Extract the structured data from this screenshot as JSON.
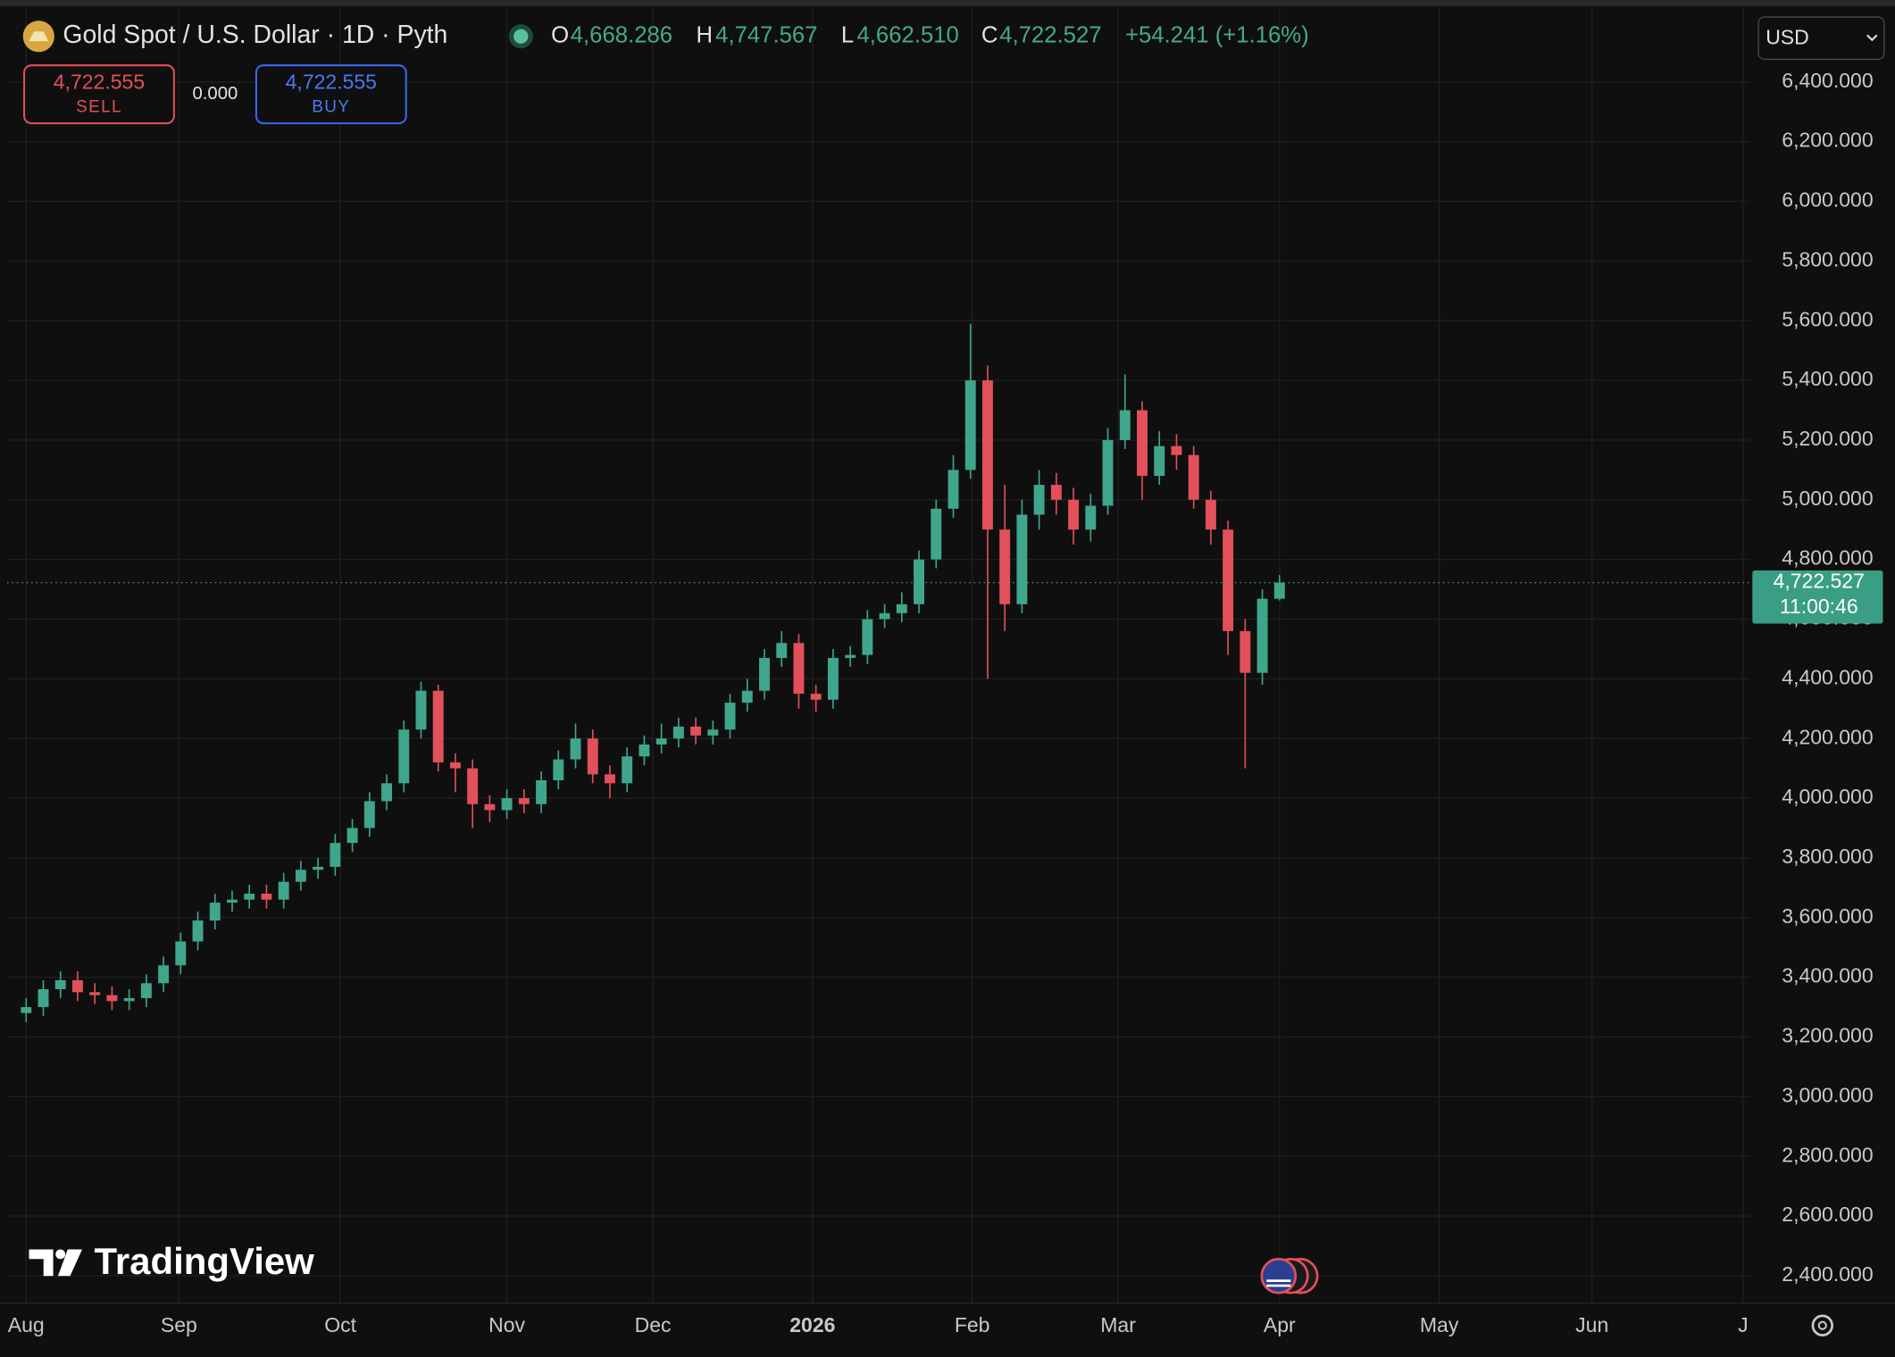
{
  "header": {
    "title": "Gold Spot / U.S. Dollar · 1D · Pyth",
    "open_label": "O",
    "open": "4,668.286",
    "high_label": "H",
    "high": "4,747.567",
    "low_label": "L",
    "low": "4,662.510",
    "close_label": "C",
    "close": "4,722.527",
    "change": "+54.241 (+1.16%)"
  },
  "trade": {
    "sell_price": "4,722.555",
    "sell_label": "SELL",
    "spread": "0.000",
    "buy_price": "4,722.555",
    "buy_label": "BUY"
  },
  "currency": "USD",
  "price_tag": {
    "price": "4,722.527",
    "countdown": "11:00:46"
  },
  "logo": "TradingView",
  "chart_data": {
    "type": "candlestick",
    "title": "Gold Spot / U.S. Dollar · 1D · Pyth",
    "categories": [
      null,
      null,
      null,
      null,
      null,
      null,
      null,
      null,
      null,
      null,
      null,
      null,
      null,
      null,
      null,
      null,
      null,
      null,
      null,
      null,
      null,
      null,
      null,
      null,
      null,
      null,
      null,
      null,
      null,
      null,
      null,
      null,
      null,
      null,
      null,
      null,
      null,
      null,
      null,
      null,
      null,
      null,
      null,
      null,
      null,
      null,
      null,
      null,
      null,
      null,
      null,
      null,
      null,
      null,
      null,
      null,
      null,
      null,
      null,
      null,
      null,
      null,
      null,
      null,
      null,
      null,
      null,
      null,
      null,
      null,
      null,
      null,
      null,
      null
    ],
    "open": [
      3280,
      3300,
      3360,
      3390,
      3350,
      3340,
      3320,
      3330,
      3380,
      3440,
      3520,
      3590,
      3650,
      3660,
      3680,
      3660,
      3720,
      3760,
      3770,
      3850,
      3900,
      3990,
      4050,
      4230,
      4360,
      4120,
      4100,
      3980,
      3960,
      4000,
      3980,
      4060,
      4130,
      4200,
      4080,
      4050,
      4140,
      4180,
      4200,
      4240,
      4210,
      4230,
      4320,
      4360,
      4470,
      4520,
      4350,
      4330,
      4470,
      4480,
      4600,
      4620,
      4650,
      4800,
      4970,
      5100,
      5400,
      4900,
      4650,
      4950,
      5050,
      5000,
      4900,
      4980,
      5200,
      5300,
      5080,
      5180,
      5150,
      5000,
      4900,
      4560,
      4420,
      4668.286
    ],
    "high": [
      3330,
      3390,
      3420,
      3420,
      3380,
      3370,
      3360,
      3410,
      3470,
      3550,
      3620,
      3680,
      3690,
      3710,
      3710,
      3750,
      3790,
      3800,
      3880,
      3930,
      4020,
      4080,
      4260,
      4390,
      4380,
      4150,
      4130,
      4010,
      4030,
      4030,
      4090,
      4160,
      4250,
      4230,
      4110,
      4170,
      4210,
      4250,
      4270,
      4270,
      4260,
      4350,
      4400,
      4500,
      4560,
      4550,
      4380,
      4500,
      4510,
      4630,
      4650,
      4690,
      4830,
      5000,
      5150,
      5590,
      5450,
      5050,
      5000,
      5100,
      5090,
      5040,
      5020,
      5240,
      5420,
      5330,
      5230,
      5220,
      5180,
      5030,
      4930,
      4600,
      4700,
      4747.567
    ],
    "low": [
      3250,
      3270,
      3330,
      3320,
      3310,
      3290,
      3290,
      3300,
      3350,
      3410,
      3490,
      3560,
      3620,
      3630,
      3630,
      3630,
      3690,
      3730,
      3740,
      3820,
      3870,
      3960,
      4020,
      4200,
      4090,
      4020,
      3900,
      3920,
      3930,
      3950,
      3950,
      4030,
      4100,
      4050,
      4000,
      4020,
      4110,
      4150,
      4170,
      4180,
      4180,
      4200,
      4290,
      4330,
      4440,
      4300,
      4290,
      4300,
      4440,
      4450,
      4570,
      4590,
      4620,
      4770,
      4940,
      5070,
      4400,
      4560,
      4620,
      4900,
      4950,
      4850,
      4860,
      4950,
      5170,
      5000,
      5050,
      5100,
      4970,
      4850,
      4480,
      4100,
      4380,
      4662.51
    ],
    "close": [
      3300,
      3360,
      3390,
      3350,
      3340,
      3320,
      3330,
      3380,
      3440,
      3520,
      3590,
      3650,
      3660,
      3680,
      3660,
      3720,
      3760,
      3770,
      3850,
      3900,
      3990,
      4050,
      4230,
      4360,
      4120,
      4100,
      3980,
      3960,
      4000,
      3980,
      4060,
      4130,
      4200,
      4080,
      4050,
      4140,
      4180,
      4200,
      4240,
      4210,
      4230,
      4320,
      4360,
      4470,
      4520,
      4350,
      4330,
      4470,
      4480,
      4600,
      4620,
      4650,
      4800,
      4970,
      5100,
      5400,
      4900,
      4650,
      4950,
      5050,
      5000,
      4900,
      4980,
      5200,
      5300,
      5080,
      5180,
      5150,
      5000,
      4900,
      4560,
      4420,
      4668.286,
      4722.527
    ],
    "up_color": "#3fa68b",
    "down_color": "#e2505a",
    "grid": true,
    "xlim": [
      -1.1,
      100.4
    ],
    "xticks": [
      {
        "value": 0,
        "label": "Aug"
      },
      {
        "value": 8.9,
        "label": "Sep"
      },
      {
        "value": 18.3,
        "label": "Oct"
      },
      {
        "value": 28,
        "label": "Nov"
      },
      {
        "value": 36.5,
        "label": "Dec"
      },
      {
        "value": 45.8,
        "label": "2026"
      },
      {
        "value": 55.1,
        "label": "Feb"
      },
      {
        "value": 63.6,
        "label": "Mar"
      },
      {
        "value": 73,
        "label": "Apr"
      },
      {
        "value": 82.3,
        "label": "May"
      },
      {
        "value": 91.2,
        "label": "Jun"
      },
      {
        "value": 100,
        "label": "J"
      }
    ],
    "ylim": [
      2310,
      6650
    ],
    "yticks": [
      {
        "value": 2400,
        "label": "2,400.000"
      },
      {
        "value": 2600,
        "label": "2,600.000"
      },
      {
        "value": 2800,
        "label": "2,800.000"
      },
      {
        "value": 3000,
        "label": "3,000.000"
      },
      {
        "value": 3200,
        "label": "3,200.000"
      },
      {
        "value": 3400,
        "label": "3,400.000"
      },
      {
        "value": 3600,
        "label": "3,600.000"
      },
      {
        "value": 3800,
        "label": "3,800.000"
      },
      {
        "value": 4000,
        "label": "4,000.000"
      },
      {
        "value": 4200,
        "label": "4,200.000"
      },
      {
        "value": 4400,
        "label": "4,400.000"
      },
      {
        "value": 4600,
        "label": "4,600.000"
      },
      {
        "value": 4800,
        "label": "4,800.000"
      },
      {
        "value": 5000,
        "label": "5,000.000"
      },
      {
        "value": 5200,
        "label": "5,200.000"
      },
      {
        "value": 5400,
        "label": "5,400.000"
      },
      {
        "value": 5600,
        "label": "5,600.000"
      },
      {
        "value": 5800,
        "label": "5,800.000"
      },
      {
        "value": 6000,
        "label": "6,000.000"
      },
      {
        "value": 6200,
        "label": "6,200.000"
      },
      {
        "value": 6400,
        "label": "6,400.000"
      }
    ]
  }
}
